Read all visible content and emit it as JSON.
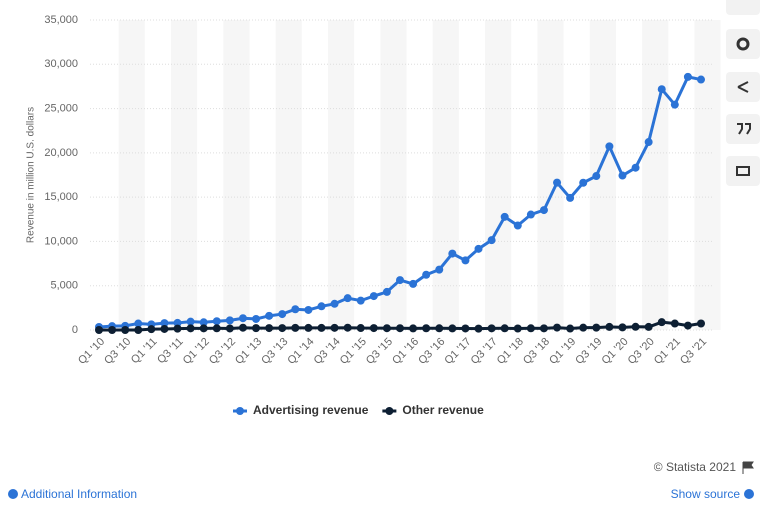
{
  "chart_data": {
    "type": "line",
    "y_label": "Revenue in million U.S. dollars",
    "categories": [
      "Q1 '10",
      null,
      "Q3 '10",
      null,
      "Q1 '11",
      null,
      "Q3 '11",
      null,
      "Q1 '12",
      null,
      "Q3 '12",
      null,
      "Q1 '13",
      null,
      "Q3 '13",
      null,
      "Q1 '14",
      null,
      "Q3 '14",
      null,
      "Q1 '15",
      null,
      "Q3 '15",
      null,
      "Q1 '16",
      null,
      "Q3 '16",
      null,
      "Q1 '17",
      null,
      "Q3 '17",
      null,
      "Q1 '18",
      null,
      "Q3 '18",
      null,
      "Q1 '19",
      null,
      "Q3 '19",
      null,
      "Q1 '20",
      null,
      "Q3 '20",
      null,
      "Q1 '21",
      null,
      "Q3 '21"
    ],
    "series": [
      {
        "name": "Advertising revenue",
        "color": "#2b73d6",
        "values": [
          345,
          431,
          467,
          731,
          637,
          776,
          798,
          943,
          872,
          992,
          1086,
          1329,
          1245,
          1599,
          1798,
          2344,
          2265,
          2676,
          2957,
          3594,
          3317,
          3827,
          4299,
          5637,
          5201,
          6239,
          6816,
          8629,
          7857,
          9164,
          10142,
          12779,
          11795,
          13038,
          13539,
          16640,
          14912,
          16624,
          17383,
          20736,
          17437,
          18321,
          21221,
          27187,
          25439,
          28580,
          28276
        ]
      },
      {
        "name": "Other revenue",
        "color": "#0d1f33",
        "values": [
          0,
          0,
          0,
          0,
          94,
          119,
          156,
          188,
          186,
          192,
          176,
          256,
          213,
          214,
          218,
          241,
          237,
          234,
          246,
          257,
          219,
          215,
          202,
          204,
          181,
          197,
          195,
          180,
          175,
          157,
          186,
          193,
          171,
          195,
          188,
          274,
          165,
          263,
          269,
          346,
          297,
          365,
          346,
          885,
          732,
          497,
          734
        ]
      }
    ],
    "ylim": [
      0,
      35000
    ],
    "yticks": [
      0,
      {
        "value": 5000,
        "label": "5,000"
      },
      {
        "value": 10000,
        "label": "10,000"
      },
      {
        "value": 15000,
        "label": "15,000"
      },
      {
        "value": 20000,
        "label": "20,000"
      },
      {
        "value": 25000,
        "label": "25,000"
      },
      {
        "value": 30000,
        "label": "30,000"
      },
      {
        "value": 35000,
        "label": "35,000"
      }
    ],
    "grid": true,
    "legend": "bottom"
  },
  "footer": {
    "credit": "© Statista 2021",
    "info": "Additional Information",
    "source": "Show source"
  }
}
